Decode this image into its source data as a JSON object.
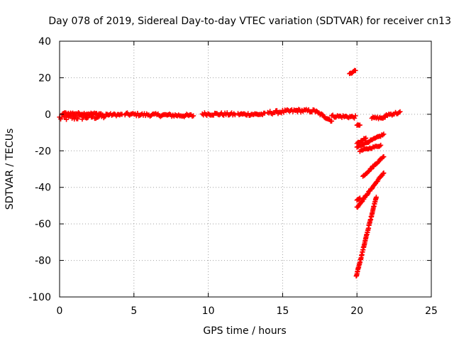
{
  "chart_data": {
    "type": "scatter",
    "title": "Day 078 of 2019, Sidereal Day-to-day VTEC variation (SDTVAR) for receiver cn13",
    "xlabel": "GPS time / hours",
    "ylabel": "SDTVAR / TECUs",
    "xlim": [
      0,
      25
    ],
    "ylim": [
      -100,
      40
    ],
    "xticks": [
      0,
      5,
      10,
      15,
      20,
      25
    ],
    "yticks": [
      -100,
      -80,
      -60,
      -40,
      -20,
      0,
      20,
      40
    ],
    "grid": true,
    "color": "#ff0000",
    "marker": "plus",
    "segments": [
      {
        "x": [
          0.0,
          3.2
        ],
        "y": [
          -2.0,
          -1.0
        ],
        "spread": 3.0
      },
      {
        "x": [
          0.2,
          2.8
        ],
        "y": [
          0.5,
          0.2
        ],
        "spread": 1.2
      },
      {
        "x": [
          3.2,
          4.2
        ],
        "y": [
          -0.2,
          -0.3
        ],
        "spread": 1.2
      },
      {
        "x": [
          4.4,
          9.0
        ],
        "y": [
          0.0,
          -0.8
        ],
        "spread": 1.6
      },
      {
        "x": [
          9.6,
          11.8
        ],
        "y": [
          0.2,
          0.0
        ],
        "spread": 1.6
      },
      {
        "x": [
          12.0,
          13.8
        ],
        "y": [
          0.0,
          0.0
        ],
        "spread": 1.4
      },
      {
        "x": [
          14.0,
          16.0
        ],
        "y": [
          0.8,
          2.0
        ],
        "spread": 1.8
      },
      {
        "x": [
          16.0,
          17.2
        ],
        "y": [
          2.0,
          1.8
        ],
        "spread": 1.6
      },
      {
        "x": [
          17.2,
          18.3
        ],
        "y": [
          1.6,
          -3.5
        ],
        "spread": 1.4
      },
      {
        "x": [
          18.3,
          19.9
        ],
        "y": [
          -1.0,
          -1.5
        ],
        "spread": 1.4
      },
      {
        "x": [
          19.5,
          19.9
        ],
        "y": [
          22.0,
          24.0
        ],
        "spread": 0.8
      },
      {
        "x": [
          20.0,
          20.2
        ],
        "y": [
          -6.0,
          -6.0
        ],
        "spread": 0.5
      },
      {
        "x": [
          20.0,
          21.8
        ],
        "y": [
          -18.0,
          -11.0
        ],
        "spread": 0.8
      },
      {
        "x": [
          20.0,
          20.6
        ],
        "y": [
          -16.0,
          -13.0
        ],
        "spread": 0.8
      },
      {
        "x": [
          20.2,
          21.6
        ],
        "y": [
          -20.0,
          -17.0
        ],
        "spread": 0.8
      },
      {
        "x": [
          20.4,
          21.8
        ],
        "y": [
          -34.0,
          -23.0
        ],
        "spread": 0.8
      },
      {
        "x": [
          20.0,
          21.8
        ],
        "y": [
          -51.0,
          -32.0
        ],
        "spread": 0.8
      },
      {
        "x": [
          20.0,
          20.2
        ],
        "y": [
          -47.0,
          -46.0
        ],
        "spread": 0.5
      },
      {
        "x": [
          19.95,
          21.3
        ],
        "y": [
          -89.0,
          -45.0
        ],
        "spread": 1.0
      },
      {
        "x": [
          21.0,
          21.9
        ],
        "y": [
          -2.0,
          -2.0
        ],
        "spread": 1.0
      },
      {
        "x": [
          21.9,
          22.9
        ],
        "y": [
          -0.5,
          1.0
        ],
        "spread": 1.4
      }
    ]
  }
}
